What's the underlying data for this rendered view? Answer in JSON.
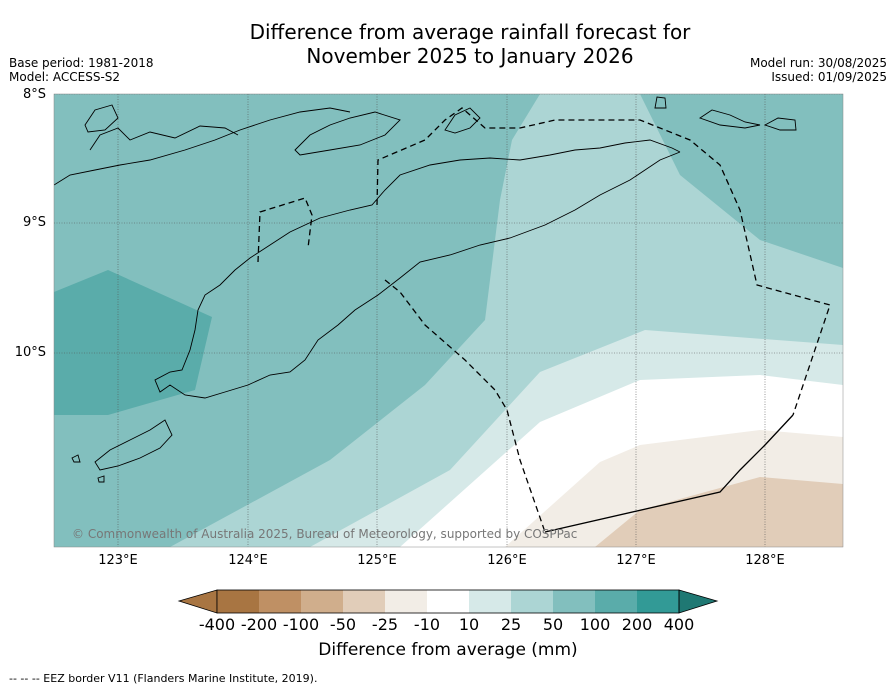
{
  "title_line1": "Difference from average rainfall forecast for",
  "title_line2": "November 2025 to January 2026",
  "base_period": "Base period: 1981-2018",
  "model": "Model: ACCESS-S2",
  "model_run": "Model run: 30/08/2025",
  "issued": "Issued: 01/09/2025",
  "map": {
    "lat_labels": [
      "8°S",
      "9°S",
      "10°S"
    ],
    "lon_labels": [
      "123°E",
      "124°E",
      "125°E",
      "126°E",
      "127°E",
      "128°E"
    ],
    "copyright": "© Commonwealth of Australia 2025, Bureau of Meteorology, supported by COSPPac"
  },
  "colorbar": {
    "title": "Difference from average (mm)",
    "labels": [
      "-400",
      "-200",
      "-100",
      "-50",
      "-25",
      "-10",
      "10",
      "25",
      "50",
      "100",
      "200",
      "400"
    ],
    "colors": [
      "#a87542",
      "#bf9064",
      "#d0ae8c",
      "#e1cdb9",
      "#f2ede6",
      "#ffffff",
      "#d6e9e8",
      "#acd5d4",
      "#82bfbe",
      "#5aacaa",
      "#329a96",
      "#1f7873"
    ]
  },
  "footnote": "--  --  -- EEZ border V11 (Flanders Marine Institute, 2019)."
}
